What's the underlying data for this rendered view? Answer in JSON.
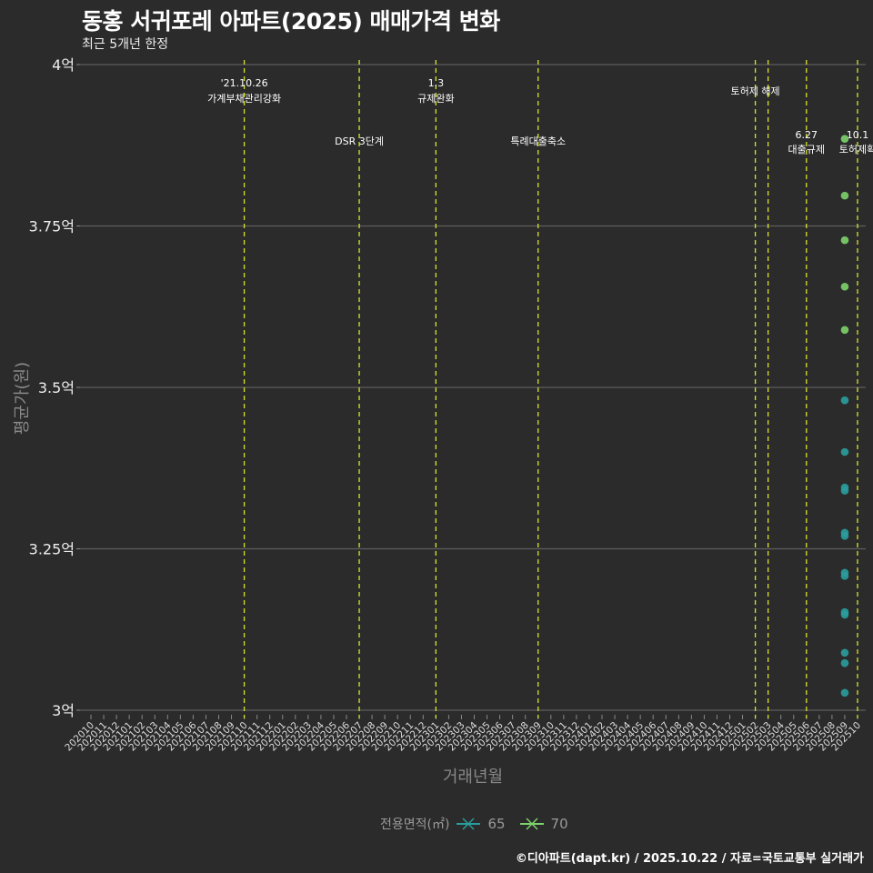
{
  "header": {
    "title": "동홍 서귀포레 아파트(2025) 매매가격 변화",
    "subtitle": "최근 5개년 한정"
  },
  "axes": {
    "ylabel": "평균가(원)",
    "xlabel": "거래년월"
  },
  "legend": {
    "title": "전용면적(㎡)",
    "items": [
      {
        "label": "65",
        "color": "#2a9d9d"
      },
      {
        "label": "70",
        "color": "#7dd36b"
      }
    ]
  },
  "footer": "©디아파트(dapt.kr) / 2025.10.22 / 자료=국토교통부 실거래가",
  "chart_data": {
    "type": "scatter",
    "title": "동홍 서귀포레 아파트(2025) 매매가격 변화",
    "subtitle": "최근 5개년 한정",
    "xlabel": "거래년월",
    "ylabel": "평균가(원)",
    "ylim": [
      3.0,
      4.0
    ],
    "y_ticks": [
      "3억",
      "3.25억",
      "3.5억",
      "3.75억",
      "4억"
    ],
    "y_tick_values": [
      3.0,
      3.25,
      3.5,
      3.75,
      4.0
    ],
    "x_categories": [
      "202010",
      "202011",
      "202012",
      "202101",
      "202102",
      "202103",
      "202104",
      "202105",
      "202106",
      "202107",
      "202108",
      "202109",
      "202110",
      "202111",
      "202112",
      "202201",
      "202202",
      "202203",
      "202204",
      "202205",
      "202206",
      "202207",
      "202208",
      "202209",
      "202210",
      "202211",
      "202212",
      "202301",
      "202302",
      "202303",
      "202304",
      "202305",
      "202306",
      "202307",
      "202308",
      "202309",
      "202310",
      "202311",
      "202312",
      "202401",
      "202402",
      "202403",
      "202404",
      "202405",
      "202406",
      "202407",
      "202408",
      "202409",
      "202410",
      "202411",
      "202412",
      "202501",
      "202502",
      "202503",
      "202504",
      "202505",
      "202506",
      "202507",
      "202508",
      "202509",
      "202510"
    ],
    "grid": true,
    "legend_position": "bottom",
    "series": [
      {
        "name": "65",
        "color": "#2a9d9d",
        "points": [
          {
            "x": "202509",
            "y": 3.48
          },
          {
            "x": "202509",
            "y": 3.4
          },
          {
            "x": "202509",
            "y": 3.345
          },
          {
            "x": "202509",
            "y": 3.34
          },
          {
            "x": "202509",
            "y": 3.275
          },
          {
            "x": "202509",
            "y": 3.27
          },
          {
            "x": "202509",
            "y": 3.213
          },
          {
            "x": "202509",
            "y": 3.208
          },
          {
            "x": "202509",
            "y": 3.152
          },
          {
            "x": "202509",
            "y": 3.148
          },
          {
            "x": "202509",
            "y": 3.089
          },
          {
            "x": "202509",
            "y": 3.073
          },
          {
            "x": "202509",
            "y": 3.027
          }
        ]
      },
      {
        "name": "70",
        "color": "#7dd36b",
        "points": [
          {
            "x": "202509",
            "y": 3.885
          },
          {
            "x": "202509",
            "y": 3.797
          },
          {
            "x": "202509",
            "y": 3.728
          },
          {
            "x": "202509",
            "y": 3.656
          },
          {
            "x": "202509",
            "y": 3.589
          }
        ]
      }
    ],
    "annotations": [
      {
        "x": "202110",
        "line1": "'21.10.26",
        "line2": "가계부채관리강화",
        "row": "top"
      },
      {
        "x": "202207",
        "line1": "",
        "line2": "DSR 3단계",
        "row": "bottom"
      },
      {
        "x": "202301",
        "line1": "1.3",
        "line2": "규제완화",
        "row": "top"
      },
      {
        "x": "202309",
        "line1": "",
        "line2": "특례대출축소",
        "row": "bottom"
      },
      {
        "x": "202502",
        "line1": "",
        "line2": "토허제 해제",
        "row": "mid"
      },
      {
        "x": "202503",
        "line1": "",
        "line2": "",
        "row": "none"
      },
      {
        "x": "202506",
        "line1": "6.27",
        "line2": "대출규제",
        "row": "bottom"
      },
      {
        "x": "202510",
        "line1": "10.1",
        "line2": "토허제확",
        "row": "bottom"
      }
    ]
  }
}
